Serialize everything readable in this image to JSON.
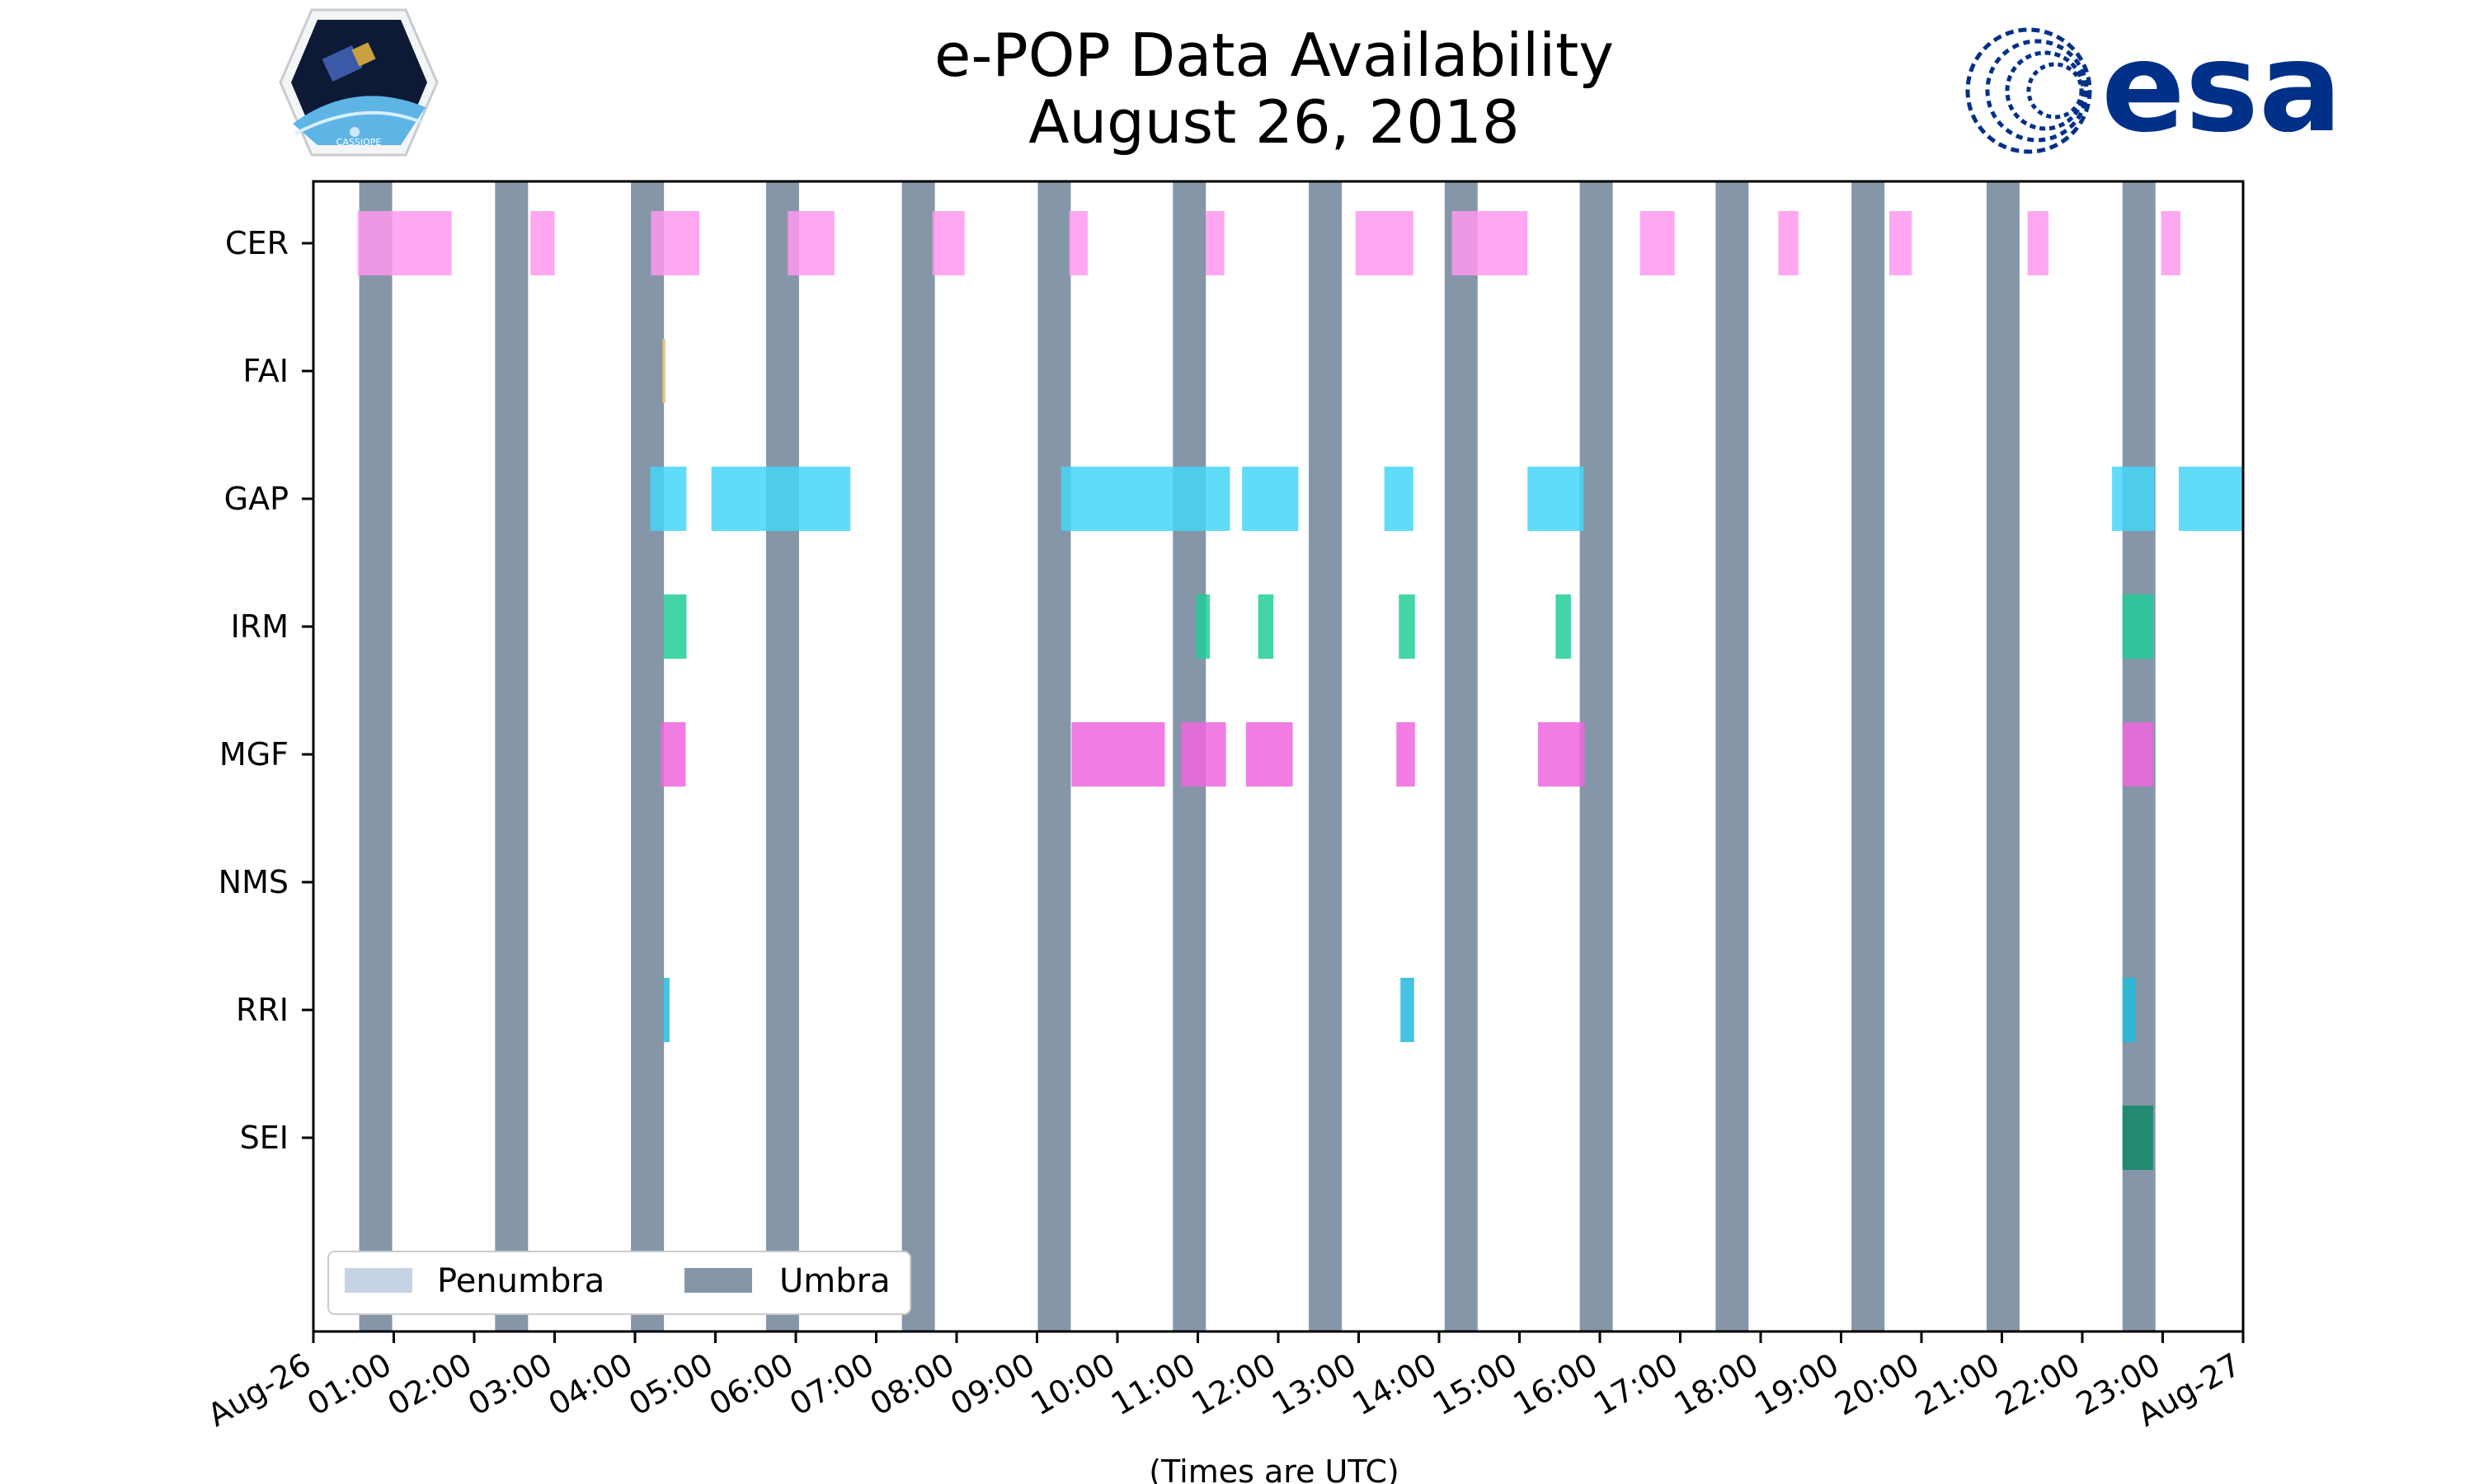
{
  "chart_data": {
    "type": "timeline",
    "title": "e-POP Data Availability",
    "subtitle": "August 26, 2018",
    "xlabel": "(Times are UTC)",
    "x_unit": "hours UTC",
    "xlim": [
      0,
      24
    ],
    "x_ticks": [
      {
        "value": 0,
        "label": "Aug-26"
      },
      {
        "value": 1,
        "label": "01:00"
      },
      {
        "value": 2,
        "label": "02:00"
      },
      {
        "value": 3,
        "label": "03:00"
      },
      {
        "value": 4,
        "label": "04:00"
      },
      {
        "value": 5,
        "label": "05:00"
      },
      {
        "value": 6,
        "label": "06:00"
      },
      {
        "value": 7,
        "label": "07:00"
      },
      {
        "value": 8,
        "label": "08:00"
      },
      {
        "value": 9,
        "label": "09:00"
      },
      {
        "value": 10,
        "label": "10:00"
      },
      {
        "value": 11,
        "label": "11:00"
      },
      {
        "value": 12,
        "label": "12:00"
      },
      {
        "value": 13,
        "label": "13:00"
      },
      {
        "value": 14,
        "label": "14:00"
      },
      {
        "value": 15,
        "label": "15:00"
      },
      {
        "value": 16,
        "label": "16:00"
      },
      {
        "value": 17,
        "label": "17:00"
      },
      {
        "value": 18,
        "label": "18:00"
      },
      {
        "value": 19,
        "label": "19:00"
      },
      {
        "value": 20,
        "label": "20:00"
      },
      {
        "value": 21,
        "label": "21:00"
      },
      {
        "value": 22,
        "label": "22:00"
      },
      {
        "value": 23,
        "label": "23:00"
      },
      {
        "value": 24,
        "label": "Aug-27"
      }
    ],
    "instruments": [
      {
        "name": "CER",
        "color": "#ff99ee",
        "intervals": [
          [
            0.55,
            1.72
          ],
          [
            2.7,
            3.0
          ],
          [
            4.2,
            4.8
          ],
          [
            5.9,
            6.48
          ],
          [
            7.7,
            8.1
          ],
          [
            9.4,
            9.63
          ],
          [
            11.1,
            11.33
          ],
          [
            12.96,
            13.68
          ],
          [
            14.16,
            15.1
          ],
          [
            16.5,
            16.93
          ],
          [
            18.22,
            18.47
          ],
          [
            19.6,
            19.88
          ],
          [
            21.32,
            21.58
          ],
          [
            22.98,
            23.22
          ]
        ]
      },
      {
        "name": "FAI",
        "color": "#e8c27a",
        "intervals": [
          [
            4.34,
            4.38
          ]
        ]
      },
      {
        "name": "GAP",
        "color": "#44d6f7",
        "intervals": [
          [
            4.19,
            4.64
          ],
          [
            4.95,
            6.68
          ],
          [
            9.3,
            11.4
          ],
          [
            11.55,
            12.25
          ],
          [
            13.32,
            13.68
          ],
          [
            15.1,
            15.8
          ],
          [
            22.37,
            22.9
          ],
          [
            23.2,
            24.0
          ]
        ]
      },
      {
        "name": "IRM",
        "color": "#22cc99",
        "intervals": [
          [
            4.36,
            4.64
          ],
          [
            10.98,
            11.15
          ],
          [
            11.75,
            11.94
          ],
          [
            13.5,
            13.7
          ],
          [
            15.45,
            15.64
          ],
          [
            22.5,
            22.88
          ]
        ]
      },
      {
        "name": "MGF",
        "color": "#ee66dd",
        "intervals": [
          [
            4.32,
            4.63
          ],
          [
            9.43,
            10.59
          ],
          [
            10.79,
            11.35
          ],
          [
            11.6,
            12.18
          ],
          [
            13.47,
            13.7
          ],
          [
            15.23,
            15.81
          ],
          [
            22.5,
            22.88
          ]
        ]
      },
      {
        "name": "NMS",
        "color": "#999999",
        "intervals": []
      },
      {
        "name": "RRI",
        "color": "#22bbdd",
        "intervals": [
          [
            4.35,
            4.43
          ],
          [
            13.52,
            13.69
          ],
          [
            22.5,
            22.66
          ]
        ]
      },
      {
        "name": "SEI",
        "color": "#118866",
        "intervals": [
          [
            22.5,
            22.88
          ]
        ]
      }
    ],
    "umbra_color": "#8596a8",
    "penumbra_color": "#c5d3e5",
    "umbra_intervals": [
      [
        0.57,
        0.98
      ],
      [
        2.26,
        2.67
      ],
      [
        3.95,
        4.36
      ],
      [
        5.63,
        6.04
      ],
      [
        7.32,
        7.73
      ],
      [
        9.01,
        9.42
      ],
      [
        10.69,
        11.1
      ],
      [
        12.38,
        12.79
      ],
      [
        14.07,
        14.48
      ],
      [
        15.75,
        16.16
      ],
      [
        17.44,
        17.85
      ],
      [
        19.13,
        19.54
      ],
      [
        20.81,
        21.22
      ],
      [
        22.5,
        22.91
      ]
    ],
    "legend": {
      "position": "lower-left",
      "entries": [
        {
          "label": "Penumbra",
          "color": "#c5d3e5"
        },
        {
          "label": "Umbra",
          "color": "#8596a8"
        }
      ]
    },
    "grid": false
  },
  "logos": {
    "right_logo_text": "esa",
    "left_logo_text": "CASSIOPE"
  }
}
